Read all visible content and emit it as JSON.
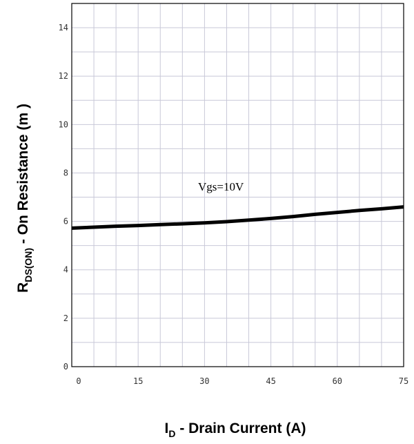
{
  "chart_data": {
    "type": "line",
    "xlabel": {
      "main": "I",
      "sub": "D",
      "rest": " - Drain Current (A)"
    },
    "ylabel": {
      "main": "R",
      "sub": "DS(ON)",
      "rest": " - On Resistance (m   )"
    },
    "xlim": [
      0,
      75
    ],
    "ylim": [
      0,
      15
    ],
    "x_ticks": [
      "0",
      "15",
      "30",
      "45",
      "60",
      "75"
    ],
    "y_ticks": [
      "0",
      "2",
      "4",
      "6",
      "8",
      "10",
      "12",
      "14"
    ],
    "grid": true,
    "annotation": "Vgs=10V",
    "series": [
      {
        "x": [
          0,
          5,
          10,
          15,
          20,
          25,
          30,
          35,
          40,
          45,
          50,
          55,
          60,
          65,
          70,
          75
        ],
        "y": [
          5.72,
          5.76,
          5.8,
          5.83,
          5.87,
          5.9,
          5.94,
          5.99,
          6.05,
          6.12,
          6.2,
          6.29,
          6.37,
          6.45,
          6.52,
          6.6
        ]
      }
    ],
    "colors": {
      "line": "#000000",
      "grid": "#c8c8d8",
      "frame": "#000000"
    }
  }
}
